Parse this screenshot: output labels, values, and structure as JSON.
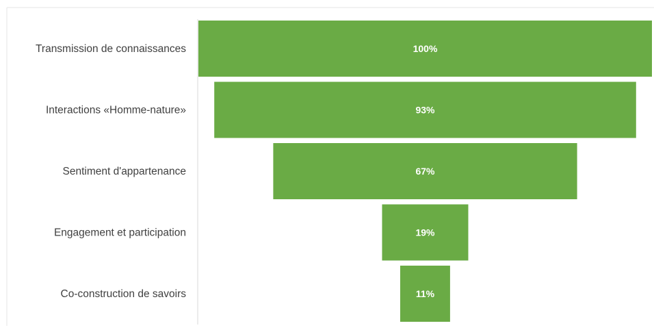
{
  "chart_data": {
    "type": "bar",
    "subtype": "funnel",
    "orientation": "horizontal",
    "categories": [
      "Transmission de connaissances",
      "Interactions «Homme-nature»",
      "Sentiment d'appartenance",
      "Engagement et participation",
      "Co-construction de savoirs"
    ],
    "values": [
      100,
      93,
      67,
      19,
      11
    ],
    "value_labels": [
      "100%",
      "93%",
      "67%",
      "19%",
      "11%"
    ],
    "unit": "%",
    "title": "",
    "xlabel": "",
    "ylabel": "",
    "xlim": [
      0,
      100
    ],
    "grid": false,
    "legend": "none",
    "colors": {
      "bar": "#6aab45",
      "value_text": "#ffffff",
      "category_text": "#404040",
      "axis_line": "#d9d9d9",
      "frame_line": "#e6e6e6"
    }
  }
}
